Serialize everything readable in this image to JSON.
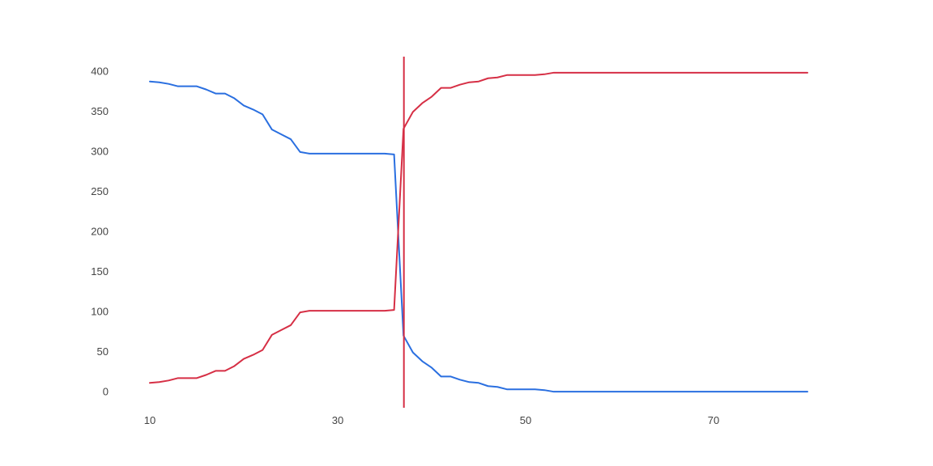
{
  "chart_data": {
    "type": "line",
    "title": "",
    "xlabel": "",
    "ylabel": "",
    "xlim": [
      10,
      80
    ],
    "ylim": [
      -20,
      418
    ],
    "x_ticks": [
      10,
      30,
      50,
      70
    ],
    "y_ticks": [
      0,
      50,
      100,
      150,
      200,
      250,
      300,
      350,
      400
    ],
    "grid": false,
    "legend": "none",
    "vertical_marker": {
      "x": 37,
      "color": "#d62f45"
    },
    "x": [
      10,
      11,
      12,
      13,
      14,
      15,
      16,
      17,
      18,
      19,
      20,
      21,
      22,
      23,
      24,
      25,
      26,
      27,
      28,
      29,
      30,
      31,
      32,
      33,
      34,
      35,
      36,
      37,
      38,
      39,
      40,
      41,
      42,
      43,
      44,
      45,
      46,
      47,
      48,
      49,
      50,
      51,
      52,
      53,
      54,
      55,
      56,
      57,
      58,
      59,
      60,
      61,
      62,
      63,
      64,
      65,
      66,
      67,
      68,
      69,
      70,
      71,
      72,
      73,
      74,
      75,
      76,
      77,
      78,
      79,
      80
    ],
    "series": [
      {
        "color": "#2a6fe0",
        "values": [
          387,
          386,
          384,
          381,
          381,
          381,
          377,
          372,
          372,
          366,
          357,
          352,
          346,
          327,
          321,
          315,
          299,
          297,
          297,
          297,
          297,
          297,
          297,
          297,
          297,
          297,
          296,
          70,
          49,
          38,
          30,
          19,
          19,
          15,
          12,
          11,
          7,
          6,
          3,
          3,
          3,
          3,
          2,
          0,
          0,
          0,
          0,
          0,
          0,
          0,
          0,
          0,
          0,
          0,
          0,
          0,
          0,
          0,
          0,
          0,
          0,
          0,
          0,
          0,
          0,
          0,
          0,
          0,
          0,
          0,
          0
        ]
      },
      {
        "color": "#d62f45",
        "values": [
          11,
          12,
          14,
          17,
          17,
          17,
          21,
          26,
          26,
          32,
          41,
          46,
          52,
          71,
          77,
          83,
          99,
          101,
          101,
          101,
          101,
          101,
          101,
          101,
          101,
          101,
          102,
          328,
          349,
          360,
          368,
          379,
          379,
          383,
          386,
          387,
          391,
          392,
          395,
          395,
          395,
          395,
          396,
          398,
          398,
          398,
          398,
          398,
          398,
          398,
          398,
          398,
          398,
          398,
          398,
          398,
          398,
          398,
          398,
          398,
          398,
          398,
          398,
          398,
          398,
          398,
          398,
          398,
          398,
          398,
          398
        ]
      }
    ]
  }
}
